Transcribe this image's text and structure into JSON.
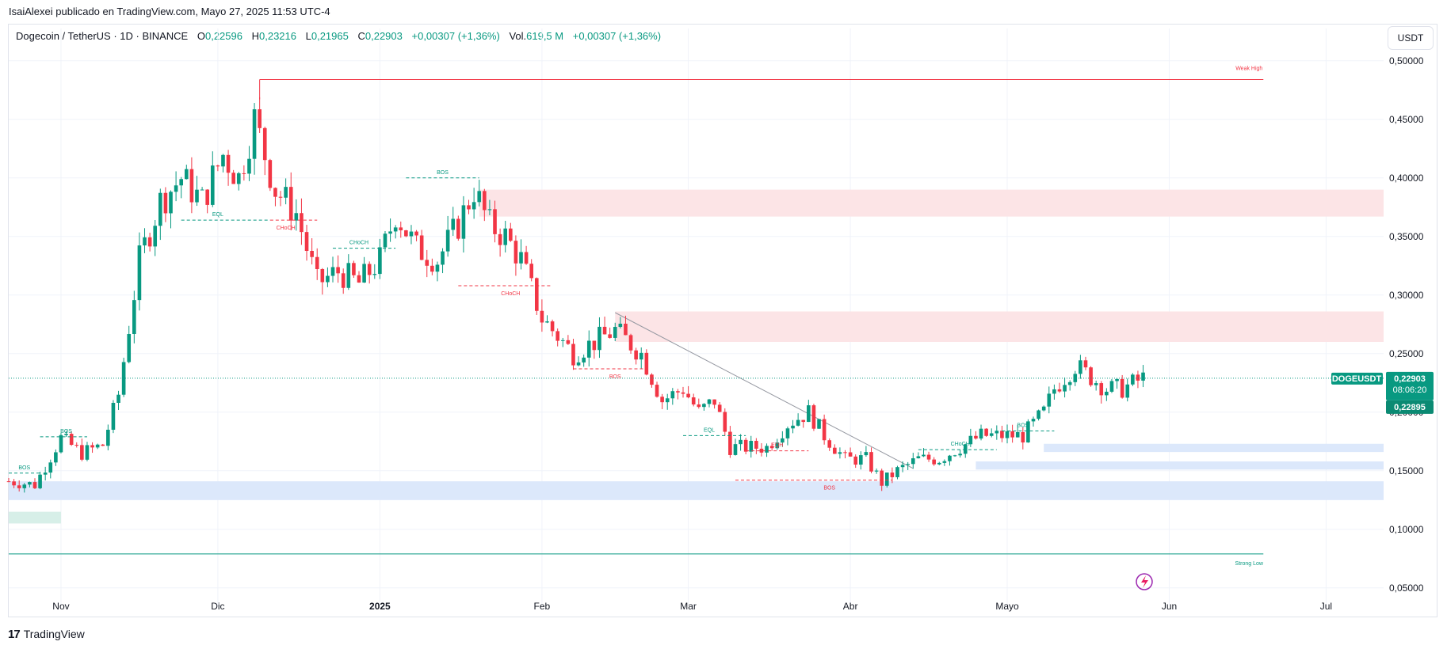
{
  "header": {
    "publish_line": "IsaiAlexei publicado en TradingView.com, Mayo 27, 2025 11:53 UTC-4"
  },
  "legend": {
    "symbol": "Dogecoin / TetherUS · 1D · BINANCE",
    "o_label": "O",
    "o_value": "0,22596",
    "h_label": "H",
    "h_value": "0,23216",
    "l_label": "L",
    "l_value": "0,21965",
    "c_label": "C",
    "c_value": "0,22903",
    "change": "+0,00307 (+1,36%)",
    "vol_label": "Vol.",
    "vol_value": "619,5 M",
    "vol_change": "+0,00307 (+1,36%)"
  },
  "currency_button": "USDT",
  "footer": {
    "brand_mark": "17",
    "brand_name": "TradingView"
  },
  "colors": {
    "up": "#089981",
    "down": "#f23645",
    "supply_zone": "#fce4e6",
    "demand_zone": "#dce8fb",
    "grid": "#f0f3fa"
  },
  "chart_data": {
    "type": "candlestick",
    "ylim": [
      0.035,
      0.51
    ],
    "y_ticks": [
      "0,50000",
      "0,45000",
      "0,40000",
      "0,35000",
      "0,30000",
      "0,25000",
      "0,20000",
      "0,15000",
      "0,10000",
      "0,05000"
    ],
    "y_tick_values": [
      0.5,
      0.45,
      0.4,
      0.35,
      0.3,
      0.25,
      0.2,
      0.15,
      0.1,
      0.05
    ],
    "x_ticks": [
      {
        "label": "Nov",
        "date": "2024-11-01"
      },
      {
        "label": "Dic",
        "date": "2024-12-01"
      },
      {
        "label": "2025",
        "date": "2025-01-01",
        "bold": true
      },
      {
        "label": "Feb",
        "date": "2025-02-01"
      },
      {
        "label": "Mar",
        "date": "2025-03-01"
      },
      {
        "label": "Abr",
        "date": "2025-04-01"
      },
      {
        "label": "Mayo",
        "date": "2025-05-01"
      },
      {
        "label": "Jun",
        "date": "2025-06-01"
      },
      {
        "label": "Jul",
        "date": "2025-07-01"
      }
    ],
    "x_start": "2024-10-22",
    "x_end": "2025-07-12",
    "close_path_dates": [
      "2024-10-22",
      "2024-10-27",
      "2024-11-01",
      "2024-11-05",
      "2024-11-09",
      "2024-11-12",
      "2024-11-16",
      "2024-11-20",
      "2024-11-24",
      "2024-11-28",
      "2024-12-02",
      "2024-12-05",
      "2024-12-08",
      "2024-12-12",
      "2024-12-16",
      "2024-12-20",
      "2024-12-24",
      "2024-12-28",
      "2025-01-01",
      "2025-01-04",
      "2025-01-08",
      "2025-01-12",
      "2025-01-16",
      "2025-01-19",
      "2025-01-22",
      "2025-01-25",
      "2025-01-28",
      "2025-02-01",
      "2025-02-03",
      "2025-02-07",
      "2025-02-11",
      "2025-02-15",
      "2025-02-20",
      "2025-02-24",
      "2025-02-28",
      "2025-03-03",
      "2025-03-06",
      "2025-03-09",
      "2025-03-12",
      "2025-03-16",
      "2025-03-20",
      "2025-03-24",
      "2025-03-27",
      "2025-03-31",
      "2025-04-04",
      "2025-04-07",
      "2025-04-10",
      "2025-04-14",
      "2025-04-18",
      "2025-04-22",
      "2025-04-26",
      "2025-04-30",
      "2025-05-04",
      "2025-05-08",
      "2025-05-10",
      "2025-05-12",
      "2025-05-14",
      "2025-05-17",
      "2025-05-20",
      "2025-05-23",
      "2025-05-27"
    ],
    "close_path_values": [
      0.141,
      0.138,
      0.178,
      0.165,
      0.172,
      0.215,
      0.33,
      0.38,
      0.4,
      0.38,
      0.42,
      0.4,
      0.45,
      0.39,
      0.37,
      0.31,
      0.32,
      0.31,
      0.33,
      0.37,
      0.34,
      0.33,
      0.36,
      0.39,
      0.36,
      0.35,
      0.33,
      0.28,
      0.27,
      0.25,
      0.26,
      0.27,
      0.25,
      0.21,
      0.22,
      0.2,
      0.21,
      0.17,
      0.17,
      0.17,
      0.19,
      0.2,
      0.18,
      0.16,
      0.16,
      0.14,
      0.15,
      0.16,
      0.16,
      0.17,
      0.18,
      0.18,
      0.18,
      0.2,
      0.22,
      0.23,
      0.24,
      0.23,
      0.22,
      0.22,
      0.22903
    ],
    "supply_zones": [
      {
        "from": "2025-01-20",
        "to": "2025-07-12",
        "low": 0.367,
        "high": 0.39
      },
      {
        "from": "2025-02-15",
        "to": "2025-07-12",
        "low": 0.26,
        "high": 0.286
      }
    ],
    "demand_zones": [
      {
        "from": "2024-10-22",
        "to": "2025-07-12",
        "low": 0.125,
        "high": 0.141
      },
      {
        "from": "2025-04-25",
        "to": "2025-07-12",
        "low": 0.151,
        "high": 0.158
      },
      {
        "from": "2025-05-08",
        "to": "2025-07-12",
        "low": 0.166,
        "high": 0.173
      }
    ],
    "weak_high": {
      "label": "Weak High",
      "value": 0.484,
      "from": "2024-12-09",
      "to": "2025-06-19"
    },
    "strong_low": {
      "label": "Strong Low",
      "value": 0.079,
      "from": "2024-10-22",
      "to": "2025-06-19"
    },
    "trendline": {
      "from": [
        "2025-02-15",
        0.285
      ],
      "to": [
        "2025-04-13",
        0.152
      ]
    },
    "structure_labels": [
      {
        "text": "BOS",
        "date": "2024-10-25",
        "value": 0.148,
        "color": "up",
        "line_from": "2024-10-22",
        "line_to": "2024-10-28"
      },
      {
        "text": "BOS",
        "date": "2024-11-02",
        "value": 0.179,
        "color": "up",
        "line_from": "2024-10-28",
        "line_to": "2024-11-06"
      },
      {
        "text": "EQL",
        "date": "2024-12-01",
        "value": 0.364,
        "color": "up",
        "line_from": "2024-11-24",
        "line_to": "2024-12-11"
      },
      {
        "text": "CHoCH",
        "date": "2024-12-14",
        "value": 0.364,
        "color": "down",
        "line_from": "2024-12-11",
        "line_to": "2024-12-20"
      },
      {
        "text": "CHoCH",
        "date": "2024-12-28",
        "value": 0.34,
        "color": "up",
        "line_from": "2024-12-23",
        "line_to": "2025-01-04"
      },
      {
        "text": "BOS",
        "date": "2025-01-13",
        "value": 0.4,
        "color": "up",
        "line_from": "2025-01-06",
        "line_to": "2025-01-20"
      },
      {
        "text": "CHoCH",
        "date": "2025-01-26",
        "value": 0.308,
        "color": "down",
        "line_from": "2025-01-16",
        "line_to": "2025-02-03"
      },
      {
        "text": "BOS",
        "date": "2025-02-15",
        "value": 0.237,
        "color": "down",
        "line_from": "2025-02-07",
        "line_to": "2025-02-21"
      },
      {
        "text": "EQL",
        "date": "2025-03-05",
        "value": 0.18,
        "color": "up",
        "line_from": "2025-02-28",
        "line_to": "2025-03-12"
      },
      {
        "text": "EQH",
        "date": "2025-03-18",
        "value": 0.167,
        "color": "down",
        "line_from": "2025-03-12",
        "line_to": "2025-03-24"
      },
      {
        "text": "BOS",
        "date": "2025-03-28",
        "value": 0.142,
        "color": "down",
        "line_from": "2025-03-10",
        "line_to": "2025-04-09"
      },
      {
        "text": "CHoCH",
        "date": "2025-04-22",
        "value": 0.168,
        "color": "up",
        "line_from": "2025-04-14",
        "line_to": "2025-04-29"
      },
      {
        "text": "BOS",
        "date": "2025-05-04",
        "value": 0.184,
        "color": "up",
        "line_from": "2025-04-30",
        "line_to": "2025-05-10"
      }
    ],
    "last_price": {
      "symbol": "DOGEUSDT",
      "price": "0,22903",
      "countdown": "08:06:20",
      "bid": "0,22895",
      "value": 0.22903
    }
  }
}
